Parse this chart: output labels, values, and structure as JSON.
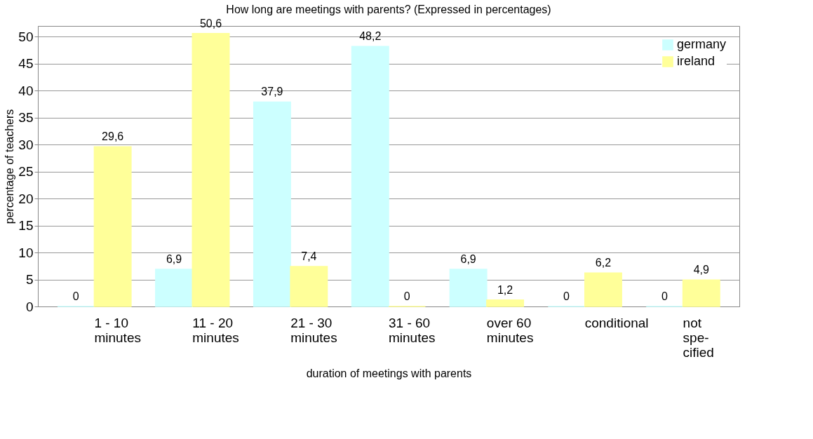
{
  "chart_data": {
    "type": "bar",
    "title": "How long are meetings with parents? (Expressed in percentages)",
    "xlabel": "duration of meetings with parents",
    "ylabel": "percentage of teachers",
    "categories": [
      "1 - 10\nminutes",
      "11 - 20\nminutes",
      "21 - 30\nminutes",
      "31 - 60\nminutes",
      "over 60\nminutes",
      "conditional",
      "not\nspe-\ncified"
    ],
    "series": [
      {
        "name": "germany",
        "color": "#ccffff",
        "values": [
          0,
          6.9,
          37.9,
          48.2,
          6.9,
          0,
          0
        ],
        "value_labels": [
          "0",
          "6,9",
          "37,9",
          "48,2",
          "6,9",
          "0",
          "0"
        ]
      },
      {
        "name": "ireland",
        "color": "#ffff99",
        "values": [
          29.6,
          50.6,
          7.4,
          0,
          1.2,
          6.2,
          4.9
        ],
        "value_labels": [
          "29,6",
          "50,6",
          "7,4",
          "0",
          "1,2",
          "6,2",
          "4,9"
        ]
      }
    ],
    "ylim": [
      0,
      52
    ],
    "yticks": [
      0,
      5,
      10,
      15,
      20,
      25,
      30,
      35,
      40,
      45,
      50
    ],
    "grid": "y",
    "legend": "top right"
  }
}
